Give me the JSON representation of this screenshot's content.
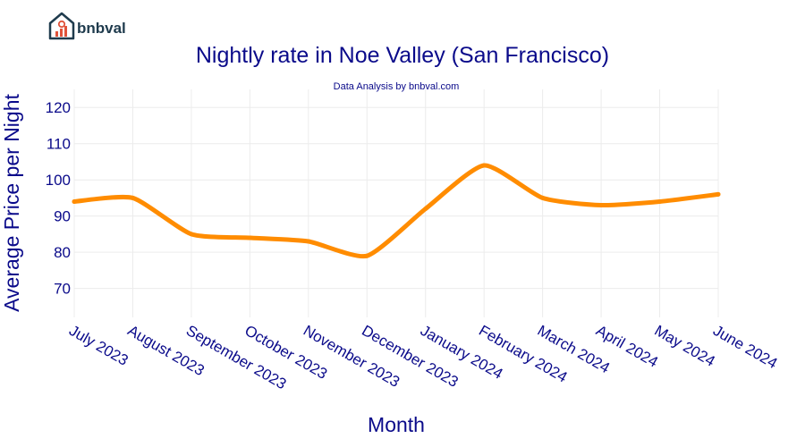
{
  "brand": {
    "name": "bnbval",
    "logo_icon": "house-chart-icon"
  },
  "colors": {
    "title": "#0a0a8a",
    "line": "#ff8c00",
    "grid": "#ececec",
    "brand": "#1f3b4d",
    "accent": "#e0533a"
  },
  "chart_data": {
    "type": "line",
    "title": "Nightly rate in Noe Valley (San Francisco)",
    "subtitle": "Data Analysis by bnbval.com",
    "xlabel": "Month",
    "ylabel": "Average Price per Night",
    "categories": [
      "July 2023",
      "August 2023",
      "September 2023",
      "October 2023",
      "November 2023",
      "December 2023",
      "January 2024",
      "February 2024",
      "March 2024",
      "April 2024",
      "May 2024",
      "June 2024"
    ],
    "series": [
      {
        "values": [
          94,
          95,
          85,
          84,
          83,
          79,
          92,
          104,
          95,
          93,
          94,
          96
        ]
      }
    ],
    "ylim": [
      62,
      125
    ],
    "yticks": [
      70,
      80,
      90,
      100,
      110,
      120
    ],
    "grid": true,
    "legend": "none",
    "line_shape": "spline"
  }
}
